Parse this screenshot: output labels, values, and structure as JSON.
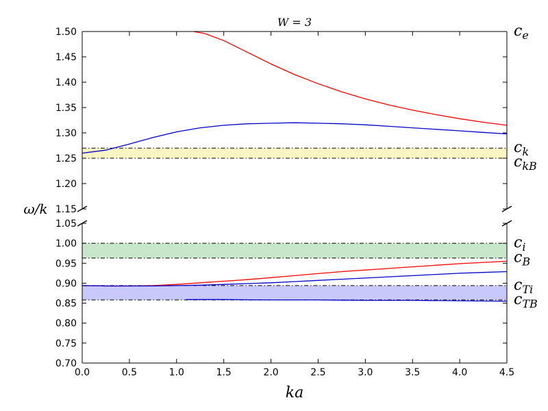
{
  "chart_data": {
    "type": "line",
    "title": "W = 3",
    "xlabel": "ka",
    "ylabel": "ω/k",
    "xlim": [
      0.0,
      4.5
    ],
    "x_ticks": [
      "0.0",
      "0.5",
      "1.0",
      "1.5",
      "2.0",
      "2.5",
      "3.0",
      "3.5",
      "4.0",
      "4.5"
    ],
    "panels": [
      {
        "name": "upper",
        "ylim": [
          1.15,
          1.5
        ],
        "y_ticks": [
          "1.15",
          "1.20",
          "1.25",
          "1.30",
          "1.35",
          "1.40",
          "1.45",
          "1.50"
        ],
        "bands": [
          {
            "from": 1.25,
            "to": 1.27,
            "color": "#fdf5c4"
          }
        ],
        "reference_lines": [
          {
            "label_base": "c",
            "label_sub": "e",
            "value": 1.5
          },
          {
            "label_base": "c",
            "label_sub": "k",
            "value": 1.27
          },
          {
            "label_base": "c",
            "label_sub": "kB",
            "value": 1.25
          }
        ],
        "series": [
          {
            "color": "#ff0000",
            "x": [
              1.18,
              1.3,
              1.5,
              1.75,
              2.0,
              2.25,
              2.5,
              2.75,
              3.0,
              3.25,
              3.5,
              3.75,
              4.0,
              4.25,
              4.5
            ],
            "y": [
              1.5,
              1.496,
              1.482,
              1.459,
              1.436,
              1.415,
              1.397,
              1.381,
              1.367,
              1.355,
              1.345,
              1.336,
              1.328,
              1.321,
              1.315
            ]
          },
          {
            "color": "#0000cc",
            "x": [
              0.0,
              0.25,
              0.5,
              0.75,
              1.0,
              1.25,
              1.5,
              1.75,
              2.0,
              2.25,
              2.5,
              2.75,
              3.0,
              3.25,
              3.5,
              3.75,
              4.0,
              4.25,
              4.5
            ],
            "y": [
              1.26,
              1.266,
              1.278,
              1.291,
              1.302,
              1.31,
              1.315,
              1.318,
              1.319,
              1.32,
              1.319,
              1.318,
              1.316,
              1.313,
              1.31,
              1.307,
              1.304,
              1.301,
              1.298
            ]
          }
        ]
      },
      {
        "name": "lower",
        "ylim": [
          0.7,
          1.05
        ],
        "y_ticks": [
          "0.70",
          "0.75",
          "0.80",
          "0.85",
          "0.90",
          "0.95",
          "1.00",
          "1.05"
        ],
        "bands": [
          {
            "from": 0.963,
            "to": 1.0,
            "color": "#c8e6c9"
          },
          {
            "from": 0.858,
            "to": 0.894,
            "color": "#c8c8fa"
          }
        ],
        "reference_lines": [
          {
            "label_base": "c",
            "label_sub": "i",
            "value": 1.0
          },
          {
            "label_base": "c",
            "label_sub": "B",
            "value": 0.963
          },
          {
            "label_base": "c",
            "label_sub": "Ti",
            "value": 0.894
          },
          {
            "label_base": "c",
            "label_sub": "TB",
            "value": 0.858
          }
        ],
        "series": [
          {
            "color": "#ff0000",
            "x": [
              0.0,
              0.25,
              0.5,
              0.75,
              1.0,
              1.25,
              1.5,
              1.75,
              2.0,
              2.25,
              2.5,
              2.75,
              3.0,
              3.25,
              3.5,
              3.75,
              4.0,
              4.25,
              4.5
            ],
            "y": [
              0.894,
              0.893,
              0.893,
              0.894,
              0.897,
              0.901,
              0.905,
              0.909,
              0.914,
              0.919,
              0.924,
              0.929,
              0.933,
              0.937,
              0.941,
              0.945,
              0.949,
              0.952,
              0.955
            ]
          },
          {
            "color": "#0000cc",
            "x": [
              0.0,
              0.25,
              0.5,
              0.75,
              1.0,
              1.25,
              1.5,
              1.75,
              2.0,
              2.25,
              2.5,
              2.75,
              3.0,
              3.25,
              3.5,
              3.75,
              4.0,
              4.25,
              4.5
            ],
            "y": [
              0.894,
              0.893,
              0.893,
              0.893,
              0.894,
              0.895,
              0.897,
              0.899,
              0.901,
              0.904,
              0.907,
              0.91,
              0.913,
              0.916,
              0.919,
              0.922,
              0.925,
              0.927,
              0.929
            ]
          },
          {
            "color": "#0000cc",
            "x": [
              1.1,
              1.5,
              2.0,
              2.5,
              3.0,
              3.5,
              4.0,
              4.5
            ],
            "y": [
              0.859,
              0.859,
              0.858,
              0.858,
              0.857,
              0.857,
              0.856,
              0.855
            ]
          }
        ]
      }
    ]
  }
}
